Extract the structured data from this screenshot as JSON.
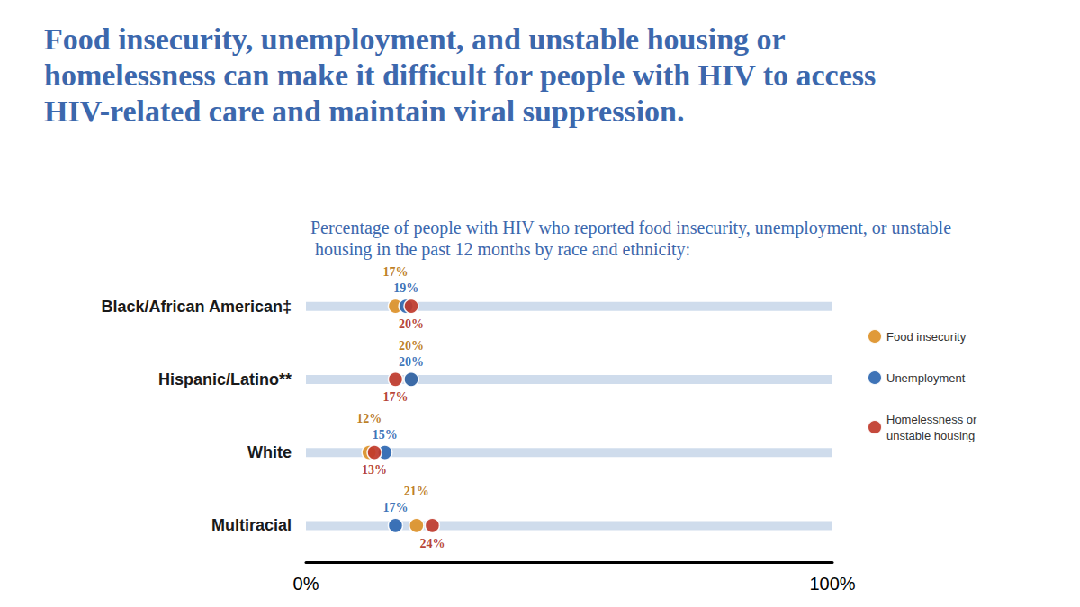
{
  "chart_data": {
    "type": "scatter",
    "orientation": "horizontal",
    "title": "Food insecurity, unemployment, and unstable housing or homelessness can make it difficult for people with HIV to access HIV-related care and maintain viral suppression.",
    "subtitle": "Percentage of people with HIV who reported food insecurity, unemployment, or unstable housing in the past 12 months by race and ethnicity:",
    "categories": [
      "Black/African American‡",
      "Hispanic/Latino**",
      "White",
      "Multiracial"
    ],
    "series": [
      {
        "name": "Food insecurity",
        "color": "#dd9128",
        "values": [
          17,
          20,
          12,
          21
        ],
        "value_labels": [
          "17%",
          "20%",
          "12%",
          "21%"
        ]
      },
      {
        "name": "Unemployment",
        "color": "#2e67b1",
        "values": [
          19,
          20,
          15,
          17
        ],
        "value_labels": [
          "19%",
          "20%",
          "15%",
          "17%"
        ]
      },
      {
        "name": "Homelessness or unstable housing",
        "color": "#c0392b",
        "values": [
          20,
          17,
          13,
          24
        ],
        "value_labels": [
          "20%",
          "17%",
          "13%",
          "24%"
        ]
      }
    ],
    "xlim": [
      0,
      100
    ],
    "xticks": [
      {
        "value": 0,
        "label": "0%"
      },
      {
        "value": 100,
        "label": "100%"
      }
    ],
    "grid": false,
    "legend": "right",
    "data_labels": true,
    "marker": "circle"
  }
}
